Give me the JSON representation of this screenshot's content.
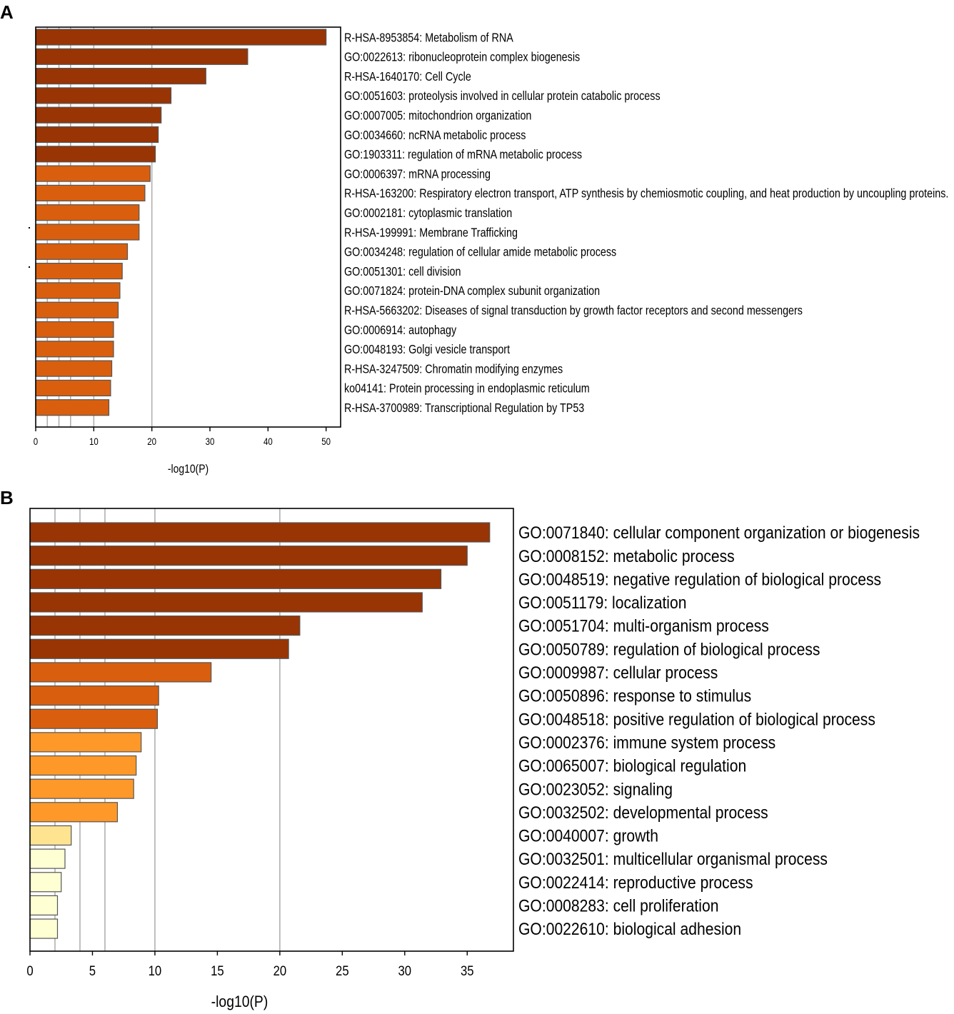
{
  "chart_data": [
    {
      "panel": "A",
      "type": "bar",
      "orientation": "horizontal",
      "xlabel": "-log10(P)",
      "xlim": [
        0,
        52.5
      ],
      "xticks": [
        0,
        10,
        20,
        30,
        40,
        50
      ],
      "gridlines": [
        2,
        4,
        6,
        10,
        20
      ],
      "categories": [
        "R-HSA-8953854: Metabolism of RNA",
        "GO:0022613: ribonucleoprotein complex biogenesis",
        "R-HSA-1640170: Cell Cycle",
        "GO:0051603: proteolysis involved in cellular protein catabolic process",
        "GO:0007005: mitochondrion organization",
        "GO:0034660: ncRNA metabolic process",
        "GO:1903311: regulation of mRNA metabolic process",
        "GO:0006397: mRNA processing",
        "R-HSA-163200: Respiratory electron transport, ATP synthesis by chemiosmotic coupling, and heat production by uncoupling proteins.",
        "GO:0002181: cytoplasmic translation",
        "R-HSA-199991: Membrane Trafficking",
        "GO:0034248: regulation of cellular amide metabolic process",
        "GO:0051301: cell division",
        "GO:0071824: protein-DNA complex subunit organization",
        "R-HSA-5663202: Diseases of signal transduction by growth factor receptors and second messengers",
        "GO:0006914: autophagy",
        "GO:0048193: Golgi vesicle transport",
        "R-HSA-3247509: Chromatin modifying enzymes",
        "ko04141: Protein processing in endoplasmic reticulum",
        "R-HSA-3700989: Transcriptional Regulation by TP53"
      ],
      "values": [
        50.0,
        36.5,
        29.3,
        23.3,
        21.6,
        21.1,
        20.6,
        19.7,
        18.8,
        17.8,
        17.8,
        15.8,
        14.9,
        14.5,
        14.2,
        13.4,
        13.4,
        13.1,
        12.9,
        12.6
      ],
      "colors": [
        "#993404",
        "#993404",
        "#993404",
        "#993404",
        "#993404",
        "#993404",
        "#993404",
        "#d95f0e",
        "#d95f0e",
        "#d95f0e",
        "#d95f0e",
        "#d95f0e",
        "#d95f0e",
        "#d95f0e",
        "#d95f0e",
        "#d95f0e",
        "#d95f0e",
        "#d95f0e",
        "#d95f0e",
        "#d95f0e"
      ]
    },
    {
      "panel": "B",
      "type": "bar",
      "orientation": "horizontal",
      "xlabel": "-log10(P)",
      "xlim": [
        0,
        38.7
      ],
      "xticks": [
        0,
        5,
        10,
        15,
        20,
        25,
        30,
        35
      ],
      "gridlines": [
        2,
        4,
        6,
        10,
        20
      ],
      "categories": [
        "GO:0071840: cellular component organization or biogenesis",
        "GO:0008152: metabolic process",
        "GO:0048519: negative regulation of biological process",
        "GO:0051179: localization",
        "GO:0051704: multi-organism process",
        "GO:0050789: regulation of biological process",
        "GO:0009987: cellular process",
        "GO:0050896: response to stimulus",
        "GO:0048518: positive regulation of biological process",
        "GO:0002376: immune system process",
        "GO:0065007: biological regulation",
        "GO:0023052: signaling",
        "GO:0032502: developmental process",
        "GO:0040007: growth",
        "GO:0032501: multicellular organismal process",
        "GO:0022414: reproductive process",
        "GO:0008283: cell proliferation",
        "GO:0022610: biological adhesion"
      ],
      "values": [
        36.8,
        35.0,
        32.9,
        31.4,
        21.6,
        20.7,
        14.5,
        10.3,
        10.2,
        8.9,
        8.5,
        8.3,
        7.0,
        3.3,
        2.8,
        2.5,
        2.2,
        2.2
      ],
      "colors": [
        "#993404",
        "#993404",
        "#993404",
        "#993404",
        "#993404",
        "#993404",
        "#d95f0e",
        "#d95f0e",
        "#d95f0e",
        "#fe9929",
        "#fe9929",
        "#fe9929",
        "#fe9929",
        "#fee391",
        "#ffffd4",
        "#ffffd4",
        "#ffffd4",
        "#ffffd4"
      ]
    }
  ]
}
